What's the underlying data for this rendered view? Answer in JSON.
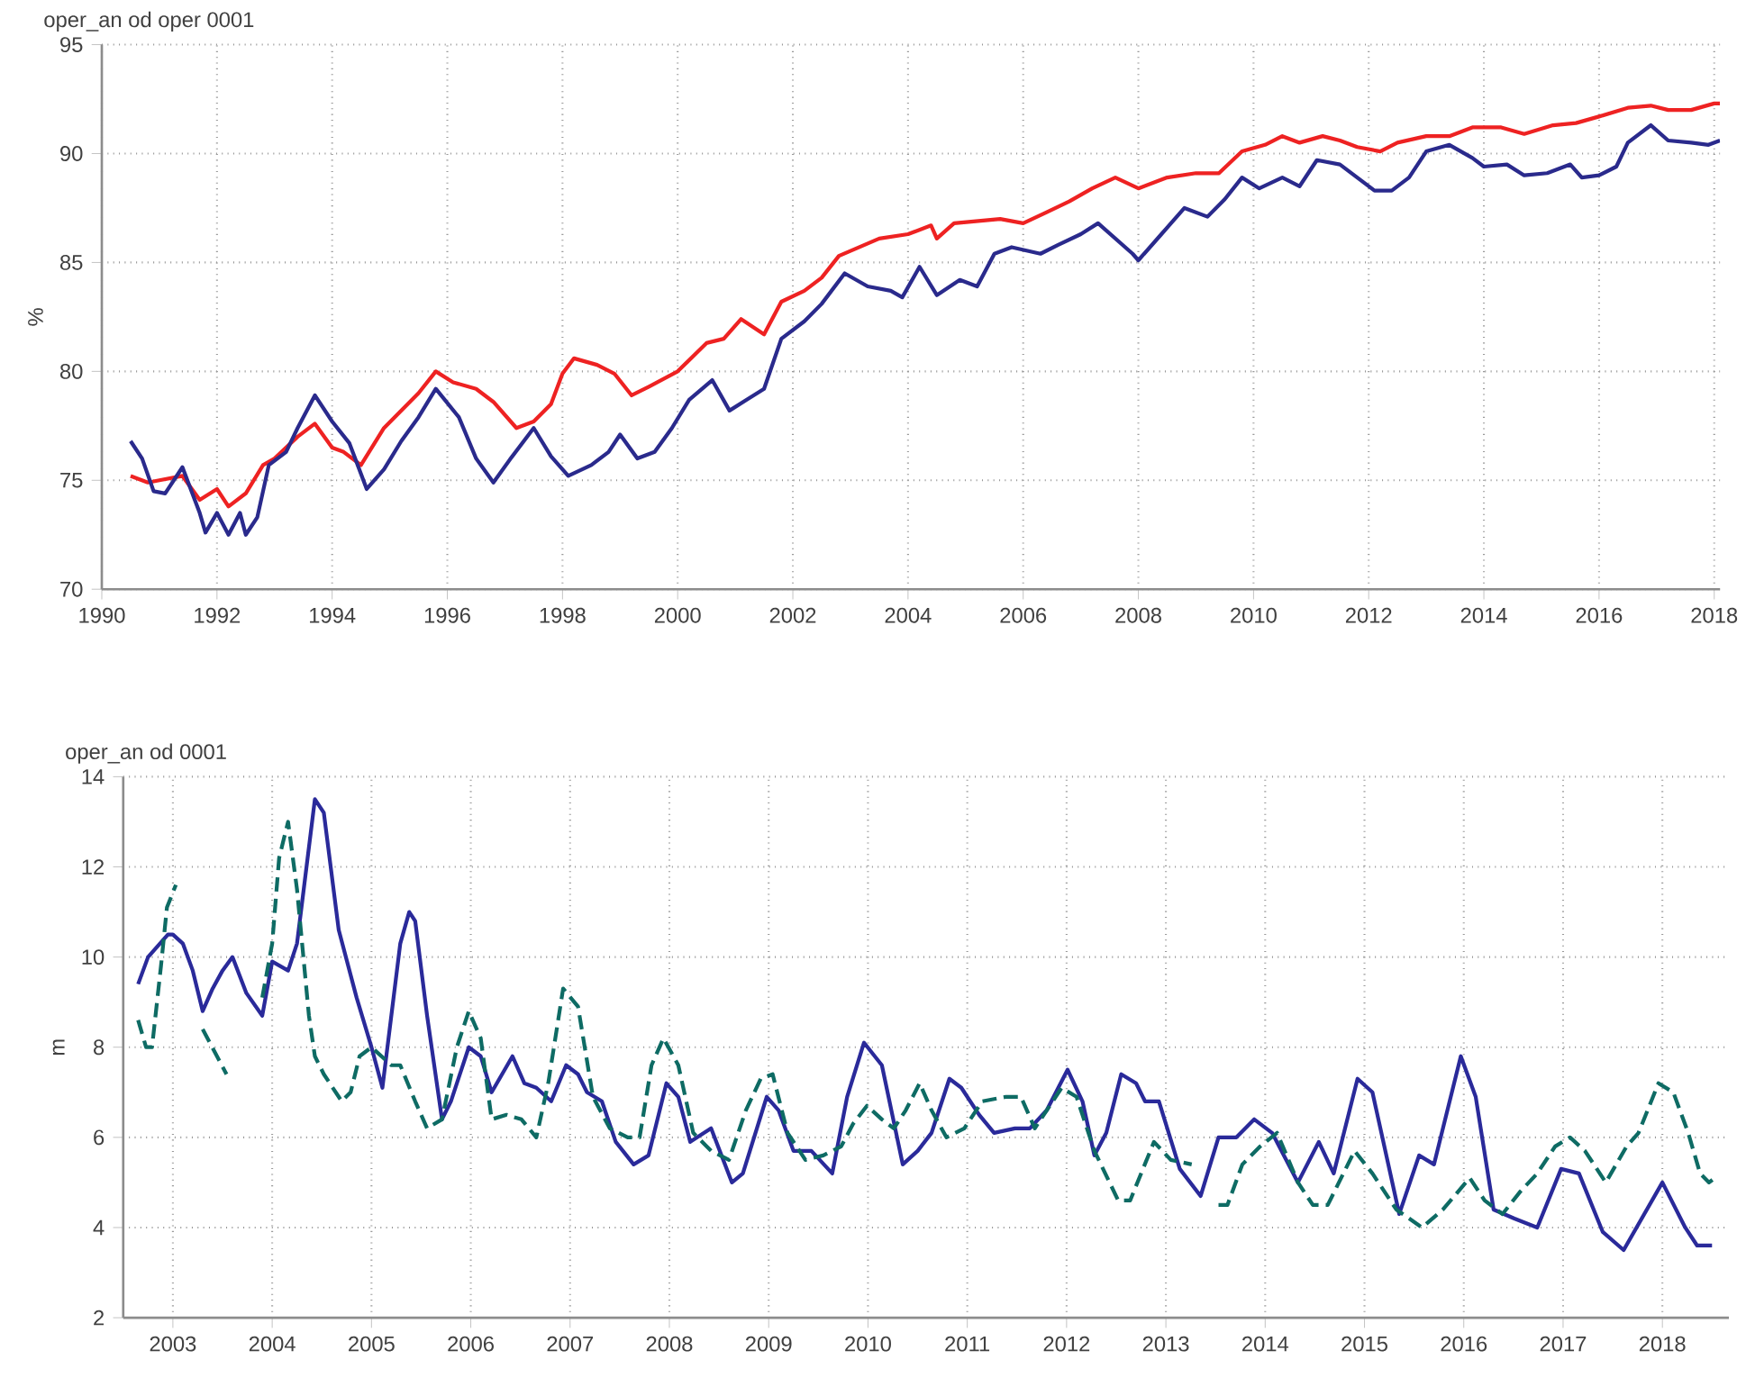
{
  "chart_data": [
    {
      "type": "line",
      "title": "oper_an od oper 0001",
      "ylabel": "%",
      "xlim": [
        1990,
        2018.1
      ],
      "ylim": [
        70,
        95
      ],
      "xticks": [
        1990,
        1992,
        1994,
        1996,
        1998,
        2000,
        2002,
        2004,
        2006,
        2008,
        2010,
        2012,
        2014,
        2016,
        2018
      ],
      "yticks": [
        70,
        75,
        80,
        85,
        90,
        95
      ],
      "grid": true,
      "marker": "none",
      "series": [
        {
          "color": "#ee2222",
          "line_style": "solid",
          "x": [
            1990.5,
            1990.8,
            1991.0,
            1991.4,
            1991.7,
            1992.0,
            1992.2,
            1992.5,
            1992.8,
            1993.0,
            1993.4,
            1993.7,
            1994.0,
            1994.2,
            1994.5,
            1994.9,
            1995.2,
            1995.5,
            1995.8,
            1996.1,
            1996.5,
            1996.8,
            1997.2,
            1997.5,
            1997.8,
            1998.0,
            1998.2,
            1998.6,
            1998.9,
            1999.2,
            1999.5,
            2000.0,
            2000.5,
            2000.8,
            2001.1,
            2001.5,
            2001.8,
            2002.2,
            2002.5,
            2002.8,
            2003.5,
            2004.0,
            2004.4,
            2004.5,
            2004.8,
            2005.2,
            2005.6,
            2006.0,
            2006.4,
            2006.8,
            2007.2,
            2007.6,
            2008.0,
            2008.5,
            2009.0,
            2009.4,
            2009.8,
            2010.2,
            2010.5,
            2010.8,
            2011.2,
            2011.5,
            2011.8,
            2012.2,
            2012.5,
            2013.0,
            2013.4,
            2013.8,
            2014.3,
            2014.7,
            2015.2,
            2015.6,
            2016.0,
            2016.5,
            2016.9,
            2017.2,
            2017.6,
            2018.0,
            2018.1
          ],
          "values": [
            75.2,
            74.9,
            75.0,
            75.2,
            74.1,
            74.6,
            73.8,
            74.4,
            75.7,
            76.0,
            77.0,
            77.6,
            76.5,
            76.3,
            75.7,
            77.4,
            78.2,
            79.0,
            80.0,
            79.5,
            79.2,
            78.6,
            77.4,
            77.7,
            78.5,
            79.9,
            80.6,
            80.3,
            79.9,
            78.9,
            79.3,
            80.0,
            81.3,
            81.5,
            82.4,
            81.7,
            83.2,
            83.7,
            84.3,
            85.3,
            86.1,
            86.3,
            86.7,
            86.1,
            86.8,
            86.9,
            87.0,
            86.8,
            87.3,
            87.8,
            88.4,
            88.9,
            88.4,
            88.9,
            89.1,
            89.1,
            90.1,
            90.4,
            90.8,
            90.5,
            90.8,
            90.6,
            90.3,
            90.1,
            90.5,
            90.8,
            90.8,
            91.2,
            91.2,
            90.9,
            91.3,
            91.4,
            91.7,
            92.1,
            92.2,
            92.0,
            92.0,
            92.3,
            92.3
          ]
        },
        {
          "color": "#2a2a8c",
          "line_style": "solid",
          "x": [
            1990.5,
            1990.7,
            1990.9,
            1991.1,
            1991.4,
            1991.7,
            1991.8,
            1992.0,
            1992.2,
            1992.4,
            1992.5,
            1992.7,
            1992.9,
            1993.2,
            1993.4,
            1993.7,
            1994.0,
            1994.3,
            1994.6,
            1994.9,
            1995.2,
            1995.5,
            1995.8,
            1996.2,
            1996.5,
            1996.8,
            1997.1,
            1997.5,
            1997.8,
            1998.1,
            1998.5,
            1998.8,
            1999.0,
            1999.3,
            1999.6,
            1999.9,
            2000.2,
            2000.6,
            2000.9,
            2001.2,
            2001.5,
            2001.8,
            2002.2,
            2002.5,
            2002.9,
            2003.3,
            2003.7,
            2003.9,
            2004.2,
            2004.5,
            2004.9,
            2005.2,
            2005.5,
            2005.8,
            2006.3,
            2006.6,
            2007.0,
            2007.3,
            2007.6,
            2007.9,
            2008.0,
            2008.4,
            2008.8,
            2009.2,
            2009.5,
            2009.8,
            2010.1,
            2010.5,
            2010.8,
            2011.1,
            2011.5,
            2011.8,
            2012.1,
            2012.4,
            2012.7,
            2013.0,
            2013.4,
            2013.8,
            2014.0,
            2014.4,
            2014.7,
            2015.1,
            2015.5,
            2015.7,
            2016.0,
            2016.3,
            2016.5,
            2016.9,
            2017.2,
            2017.6,
            2017.9,
            2018.1
          ],
          "values": [
            76.8,
            76.0,
            74.5,
            74.4,
            75.6,
            73.5,
            72.6,
            73.5,
            72.5,
            73.5,
            72.5,
            73.3,
            75.7,
            76.3,
            77.4,
            78.9,
            77.7,
            76.7,
            74.6,
            75.5,
            76.8,
            77.9,
            79.2,
            77.9,
            76.0,
            74.9,
            76.0,
            77.4,
            76.1,
            75.2,
            75.7,
            76.3,
            77.1,
            76.0,
            76.3,
            77.4,
            78.7,
            79.6,
            78.2,
            78.7,
            79.2,
            81.5,
            82.3,
            83.1,
            84.5,
            83.9,
            83.7,
            83.4,
            84.8,
            83.5,
            84.2,
            83.9,
            85.4,
            85.7,
            85.4,
            85.8,
            86.3,
            86.8,
            86.1,
            85.4,
            85.1,
            86.3,
            87.5,
            87.1,
            87.9,
            88.9,
            88.4,
            88.9,
            88.5,
            89.7,
            89.5,
            88.9,
            88.3,
            88.3,
            88.9,
            90.1,
            90.4,
            89.8,
            89.4,
            89.5,
            89.0,
            89.1,
            89.5,
            88.9,
            89.0,
            89.4,
            90.5,
            91.3,
            90.6,
            90.5,
            90.4,
            90.6
          ]
        }
      ]
    },
    {
      "type": "line",
      "title": "oper_an od 0001",
      "ylabel": "m",
      "xlim": [
        2002.5,
        2018.67
      ],
      "ylim": [
        2,
        14
      ],
      "xticks": [
        2003,
        2004,
        2005,
        2006,
        2007,
        2008,
        2009,
        2010,
        2011,
        2012,
        2013,
        2014,
        2015,
        2016,
        2017,
        2018
      ],
      "yticks": [
        2,
        4,
        6,
        8,
        10,
        12,
        14
      ],
      "grid": true,
      "marker": "none",
      "series": [
        {
          "color": "#2a2a9a",
          "line_style": "solid",
          "x": [
            2002.65,
            2002.75,
            2002.95,
            2003.0,
            2003.1,
            2003.2,
            2003.3,
            2003.4,
            2003.5,
            2003.6,
            2003.74,
            2003.9,
            2004.0,
            2004.16,
            2004.25,
            2004.43,
            2004.52,
            2004.67,
            2004.85,
            2005.0,
            2005.11,
            2005.2,
            2005.29,
            2005.38,
            2005.44,
            2005.56,
            2005.71,
            2005.8,
            2005.98,
            2006.1,
            2006.21,
            2006.42,
            2006.54,
            2006.66,
            2006.81,
            2006.96,
            2007.08,
            2007.17,
            2007.32,
            2007.46,
            2007.64,
            2007.79,
            2007.97,
            2008.09,
            2008.21,
            2008.42,
            2008.63,
            2008.74,
            2008.98,
            2009.1,
            2009.25,
            2009.43,
            2009.64,
            2009.79,
            2009.96,
            2010.14,
            2010.35,
            2010.5,
            2010.64,
            2010.82,
            2010.94,
            2011.12,
            2011.27,
            2011.48,
            2011.63,
            2011.8,
            2012.01,
            2012.16,
            2012.28,
            2012.4,
            2012.55,
            2012.7,
            2012.79,
            2012.93,
            2013.14,
            2013.35,
            2013.53,
            2013.71,
            2013.89,
            2014.07,
            2014.33,
            2014.54,
            2014.69,
            2014.93,
            2015.08,
            2015.35,
            2015.55,
            2015.7,
            2015.97,
            2016.12,
            2016.3,
            2016.51,
            2016.74,
            2016.98,
            2017.16,
            2017.4,
            2017.61,
            2018.0,
            2018.23,
            2018.35,
            2018.5
          ],
          "values": [
            9.4,
            10.0,
            10.5,
            10.5,
            10.3,
            9.7,
            8.8,
            9.3,
            9.7,
            10.0,
            9.2,
            8.7,
            9.9,
            9.7,
            10.3,
            13.5,
            13.2,
            10.6,
            9.1,
            8.0,
            7.1,
            8.7,
            10.3,
            11.0,
            10.8,
            8.7,
            6.4,
            6.8,
            8.0,
            7.8,
            7.0,
            7.8,
            7.2,
            7.1,
            6.8,
            7.6,
            7.4,
            7.0,
            6.8,
            5.9,
            5.4,
            5.6,
            7.2,
            6.9,
            5.9,
            6.2,
            5.0,
            5.2,
            6.9,
            6.6,
            5.7,
            5.7,
            5.2,
            6.9,
            8.1,
            7.6,
            5.4,
            5.7,
            6.1,
            7.3,
            7.1,
            6.5,
            6.1,
            6.2,
            6.2,
            6.6,
            7.5,
            6.8,
            5.6,
            6.1,
            7.4,
            7.2,
            6.8,
            6.8,
            5.3,
            4.7,
            6.0,
            6.0,
            6.4,
            6.1,
            5.0,
            5.9,
            5.2,
            7.3,
            7.0,
            4.3,
            5.6,
            5.4,
            7.8,
            6.9,
            4.4,
            4.2,
            4.0,
            5.3,
            5.2,
            3.9,
            3.5,
            5.0,
            4.0,
            3.6,
            3.6
          ]
        },
        {
          "color": "#0e6b64",
          "line_style": "dashed",
          "x": [
            2002.65,
            2002.73,
            2002.79,
            2002.88,
            2002.94,
            2003.03,
            2003.15,
            2003.3,
            2003.54,
            2003.7,
            2003.9,
            2004.0,
            2004.07,
            2004.16,
            2004.25,
            2004.31,
            2004.37,
            2004.43,
            2004.52,
            2004.7,
            2004.79,
            2004.88,
            2005.0,
            2005.2,
            2005.29,
            2005.44,
            2005.56,
            2005.71,
            2005.86,
            2005.98,
            2006.1,
            2006.21,
            2006.36,
            2006.51,
            2006.66,
            2006.78,
            2006.93,
            2007.08,
            2007.23,
            2007.4,
            2007.58,
            2007.7,
            2007.82,
            2007.94,
            2008.09,
            2008.24,
            2008.42,
            2008.6,
            2008.77,
            2008.92,
            2009.04,
            2009.19,
            2009.37,
            2009.55,
            2009.73,
            2009.85,
            2009.99,
            2010.14,
            2010.26,
            2010.38,
            2010.52,
            2010.64,
            2010.79,
            2010.97,
            2011.15,
            2011.39,
            2011.54,
            2011.68,
            2011.86,
            2011.95,
            2012.1,
            2012.28,
            2012.52,
            2012.64,
            2012.88,
            2013.05,
            2013.26,
            2013.4,
            2013.53,
            2013.62,
            2013.77,
            2013.95,
            2014.12,
            2014.33,
            2014.48,
            2014.63,
            2014.9,
            2015.08,
            2015.32,
            2015.58,
            2015.79,
            2016.06,
            2016.21,
            2016.39,
            2016.57,
            2016.74,
            2016.92,
            2017.07,
            2017.22,
            2017.43,
            2017.64,
            2017.76,
            2017.96,
            2018.11,
            2018.26,
            2018.38,
            2018.47,
            2018.53
          ],
          "values": [
            8.6,
            8.0,
            8.0,
            9.8,
            11.1,
            11.6,
            null,
            8.4,
            7.4,
            null,
            9.1,
            10.3,
            12.2,
            13.0,
            11.5,
            10.1,
            8.7,
            7.8,
            7.4,
            6.8,
            7.0,
            7.8,
            8.0,
            7.6,
            7.6,
            6.8,
            6.2,
            6.4,
            8.0,
            8.8,
            8.2,
            6.4,
            6.5,
            6.4,
            6.0,
            7.2,
            9.3,
            8.9,
            6.9,
            6.2,
            6.0,
            6.0,
            7.6,
            8.2,
            7.6,
            6.1,
            5.7,
            5.5,
            6.6,
            7.3,
            7.4,
            6.1,
            5.5,
            5.6,
            5.8,
            6.3,
            6.7,
            6.4,
            6.2,
            6.6,
            7.2,
            6.6,
            6.0,
            6.2,
            6.8,
            6.9,
            6.9,
            6.2,
            6.8,
            7.1,
            6.9,
            5.7,
            4.6,
            4.6,
            5.9,
            5.5,
            5.4,
            null,
            4.5,
            4.5,
            5.4,
            5.8,
            6.1,
            5.0,
            4.5,
            4.5,
            5.7,
            5.2,
            4.4,
            4.0,
            4.4,
            5.1,
            4.6,
            4.3,
            4.8,
            5.2,
            5.8,
            6.0,
            5.7,
            5.0,
            5.8,
            6.1,
            7.2,
            7.0,
            6.1,
            5.2,
            5.0,
            5.1
          ]
        }
      ]
    }
  ]
}
